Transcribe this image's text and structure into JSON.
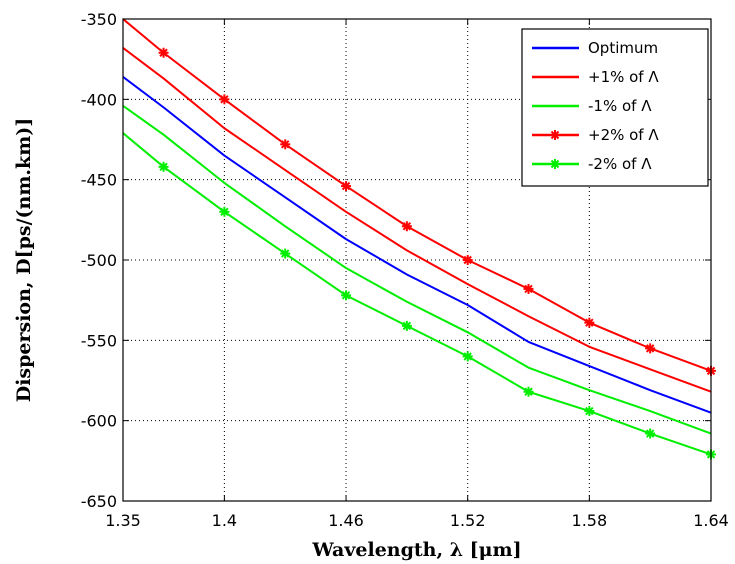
{
  "chart_data": {
    "type": "line",
    "title": "",
    "xlabel": "Wavelength, λ [μm]",
    "ylabel": "Dispersion, D[ps/(nm.km)]",
    "xlim": [
      1.35,
      1.64
    ],
    "ylim": [
      -650,
      -350
    ],
    "xticks": [
      1.35,
      1.4,
      1.46,
      1.52,
      1.58,
      1.64
    ],
    "xtick_labels": [
      "1.35",
      "1.4",
      "1.46",
      "1.52",
      "1.58",
      "1.64"
    ],
    "yticks": [
      -350,
      -400,
      -450,
      -500,
      -550,
      -600,
      -650
    ],
    "ytick_labels": [
      "-350",
      "-400",
      "-450",
      "-500",
      "-550",
      "-600",
      "-650"
    ],
    "grid": true,
    "grid_style": "dotted",
    "legend_position": "top-right",
    "x": [
      1.35,
      1.37,
      1.4,
      1.43,
      1.46,
      1.49,
      1.52,
      1.55,
      1.58,
      1.61,
      1.64
    ],
    "series": [
      {
        "name": "Optimum",
        "color": "#0000ff",
        "marker": "none",
        "values": [
          -386,
          -405,
          -435,
          -461,
          -487,
          -509,
          -528,
          -551,
          -566,
          -581,
          -595
        ]
      },
      {
        "name": "+1% of Λ",
        "color": "#ff0000",
        "marker": "none",
        "values": [
          -368,
          -387,
          -418,
          -444,
          -470,
          -494,
          -515,
          -535,
          -554,
          -568,
          -582
        ]
      },
      {
        "name": "-1% of Λ",
        "color": "#00ee00",
        "marker": "none",
        "values": [
          -404,
          -422,
          -452,
          -479,
          -505,
          -526,
          -545,
          -567,
          -581,
          -594,
          -608
        ]
      },
      {
        "name": "+2% of Λ",
        "color": "#ff0000",
        "marker": "star",
        "values": [
          -350,
          -371,
          -400,
          -428,
          -454,
          -479,
          -500,
          -518,
          -539,
          -555,
          -569
        ]
      },
      {
        "name": "-2% of Λ",
        "color": "#00ee00",
        "marker": "star",
        "values": [
          -421,
          -442,
          -470,
          -496,
          -522,
          -541,
          -560,
          -582,
          -594,
          -608,
          -621
        ]
      }
    ]
  }
}
